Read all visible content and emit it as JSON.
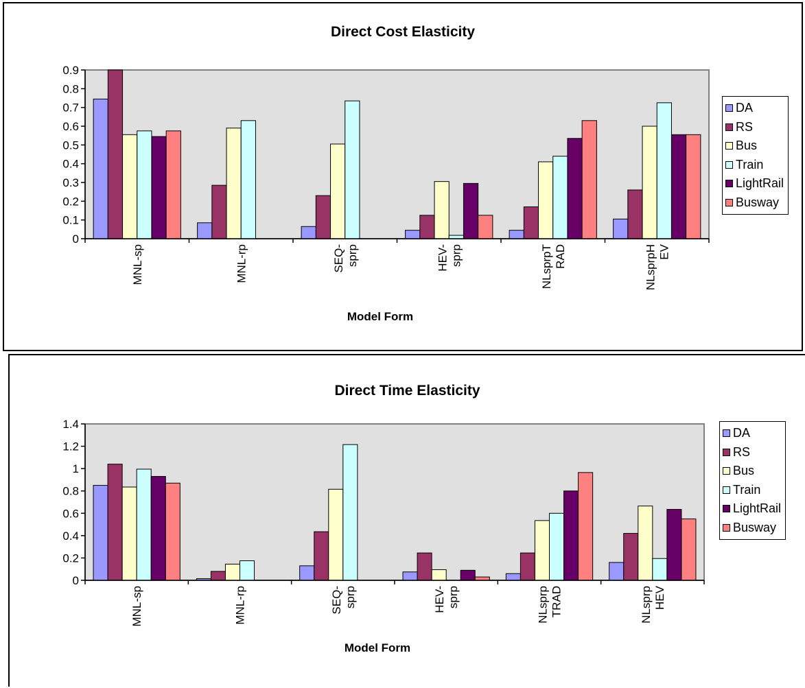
{
  "chart_data": [
    {
      "type": "bar",
      "title": "Direct Cost Elasticity",
      "xlabel": "Model Form",
      "ylabel": "",
      "ylim": [
        0,
        0.9
      ],
      "yticks": [
        "0",
        "0.1",
        "0.2",
        "0.3",
        "0.4",
        "0.5",
        "0.6",
        "0.7",
        "0.8",
        "0.9"
      ],
      "categories": [
        [
          "MNL-sp"
        ],
        [
          "MNL-rp"
        ],
        [
          "SEQ-",
          "sprp"
        ],
        [
          "HEV-",
          "sprp"
        ],
        [
          "NLsprpT",
          "RAD"
        ],
        [
          "NLsprpH",
          "EV"
        ]
      ],
      "grid": false,
      "plot_background": "#e0e0e0",
      "legend_position": "right",
      "series": [
        {
          "name": "DA",
          "color": "#9999ff",
          "values": [
            0.745,
            0.085,
            0.065,
            0.045,
            0.045,
            0.105
          ]
        },
        {
          "name": "RS",
          "color": "#993366",
          "values": [
            0.9,
            0.285,
            0.23,
            0.125,
            0.17,
            0.26
          ]
        },
        {
          "name": "Bus",
          "color": "#ffffcc",
          "values": [
            0.555,
            0.59,
            0.505,
            0.305,
            0.41,
            0.6
          ]
        },
        {
          "name": "Train",
          "color": "#ccffff",
          "values": [
            0.575,
            0.63,
            0.735,
            0.018,
            0.44,
            0.725
          ]
        },
        {
          "name": "LightRail",
          "color": "#660066",
          "values": [
            0.545,
            0,
            0,
            0.295,
            0.535,
            0.555
          ]
        },
        {
          "name": "Busway",
          "color": "#ff8080",
          "values": [
            0.575,
            0,
            0,
            0.125,
            0.63,
            0.555
          ]
        }
      ]
    },
    {
      "type": "bar",
      "title": "Direct Time Elasticity",
      "xlabel": "Model Form",
      "ylabel": "",
      "ylim": [
        0,
        1.4
      ],
      "yticks": [
        "0",
        "0.2",
        "0.4",
        "0.6",
        "0.8",
        "1",
        "1.2",
        "1.4"
      ],
      "categories": [
        [
          "MNL-sp"
        ],
        [
          "MNL-rp"
        ],
        [
          "SEQ-",
          "sprp"
        ],
        [
          "HEV-",
          "sprp"
        ],
        [
          "NLsprp",
          "TRAD"
        ],
        [
          "NLsprp",
          "HEV"
        ]
      ],
      "grid": false,
      "plot_background": "#e0e0e0",
      "legend_position": "right",
      "series": [
        {
          "name": "DA",
          "color": "#9999ff",
          "values": [
            0.85,
            0.015,
            0.13,
            0.075,
            0.06,
            0.16
          ]
        },
        {
          "name": "RS",
          "color": "#993366",
          "values": [
            1.04,
            0.08,
            0.435,
            0.245,
            0.245,
            0.42
          ]
        },
        {
          "name": "Bus",
          "color": "#ffffcc",
          "values": [
            0.835,
            0.145,
            0.815,
            0.095,
            0.535,
            0.665
          ]
        },
        {
          "name": "Train",
          "color": "#ccffff",
          "values": [
            0.995,
            0.175,
            1.215,
            0,
            0.6,
            0.195
          ]
        },
        {
          "name": "LightRail",
          "color": "#660066",
          "values": [
            0.93,
            0,
            0,
            0.09,
            0.8,
            0.635
          ]
        },
        {
          "name": "Busway",
          "color": "#ff8080",
          "values": [
            0.87,
            0,
            0,
            0.03,
            0.965,
            0.55
          ]
        }
      ]
    }
  ]
}
